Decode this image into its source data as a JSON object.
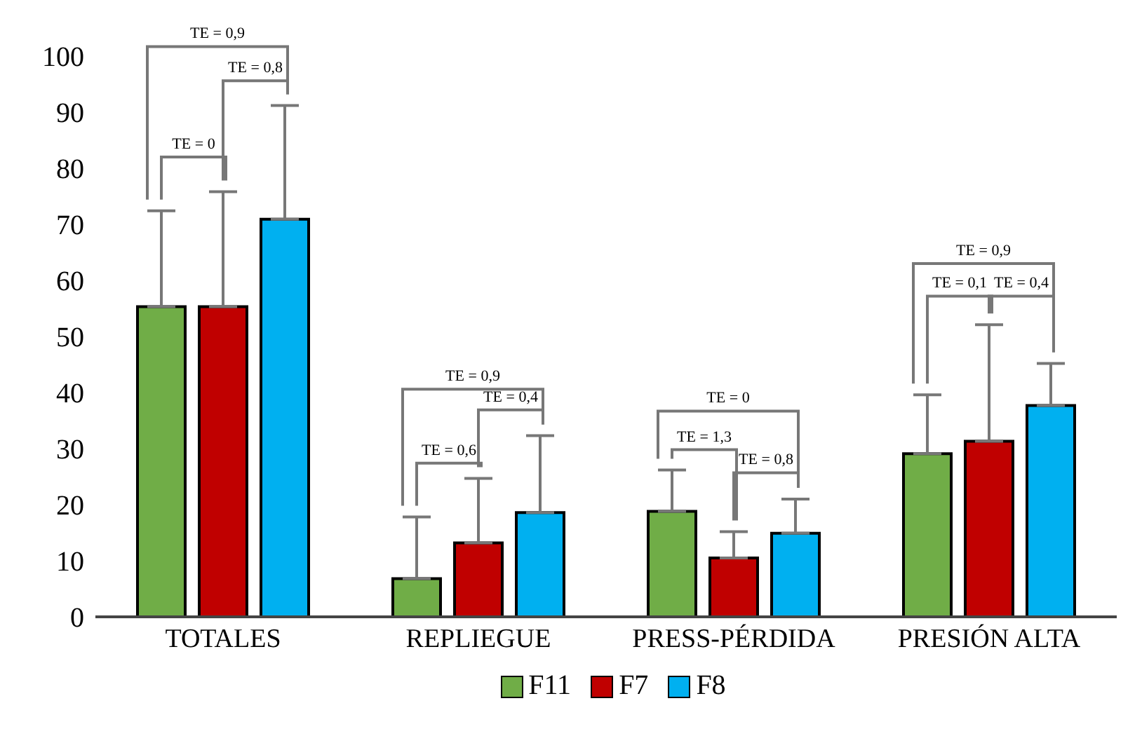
{
  "chart_data": {
    "type": "bar",
    "categories": [
      "TOTALES",
      "REPLIEGUE",
      "PRESS-PÉRDIDA",
      "PRESIÓN ALTA"
    ],
    "series": [
      {
        "name": "F11",
        "color": "#70ad47",
        "values": [
          55.3,
          6.8,
          18.8,
          29.1
        ],
        "errors": [
          [
            55.3,
            72.4
          ],
          [
            6.8,
            17.8
          ],
          [
            18.8,
            26.2
          ],
          [
            29.1,
            39.6
          ]
        ]
      },
      {
        "name": "F7",
        "color": "#c00000",
        "values": [
          55.3,
          13.2,
          10.5,
          31.3
        ],
        "errors": [
          [
            55.3,
            75.8
          ],
          [
            13.2,
            24.7
          ],
          [
            10.5,
            15.2
          ],
          [
            31.3,
            52.1
          ]
        ]
      },
      {
        "name": "F8",
        "color": "#00b0f0",
        "values": [
          70.9,
          18.6,
          14.9,
          37.7
        ],
        "errors": [
          [
            70.9,
            91.2
          ],
          [
            18.6,
            32.3
          ],
          [
            14.9,
            21
          ],
          [
            37.7,
            45.2
          ]
        ]
      }
    ],
    "ylim": [
      0,
      100
    ],
    "yticks": [
      0,
      10,
      20,
      30,
      40,
      50,
      60,
      70,
      80,
      90,
      100
    ],
    "grid": false,
    "legend": "bottom",
    "annotations": [
      "TE = 0,9",
      "TE = 0,8",
      "TE = 0",
      "TE = 0,9",
      "TE = 0,4",
      "TE = 0,6",
      "TE = 0",
      "TE = 1,3",
      "TE = 0,8",
      "TE = 0,9",
      "TE = 0,1",
      "TE = 0,4"
    ]
  }
}
